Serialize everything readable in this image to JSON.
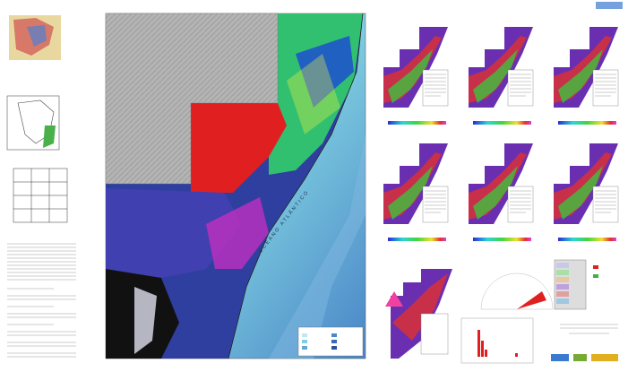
{
  "map": {
    "ocean_label": "OCEANO ATLÂNTICO"
  }
}
